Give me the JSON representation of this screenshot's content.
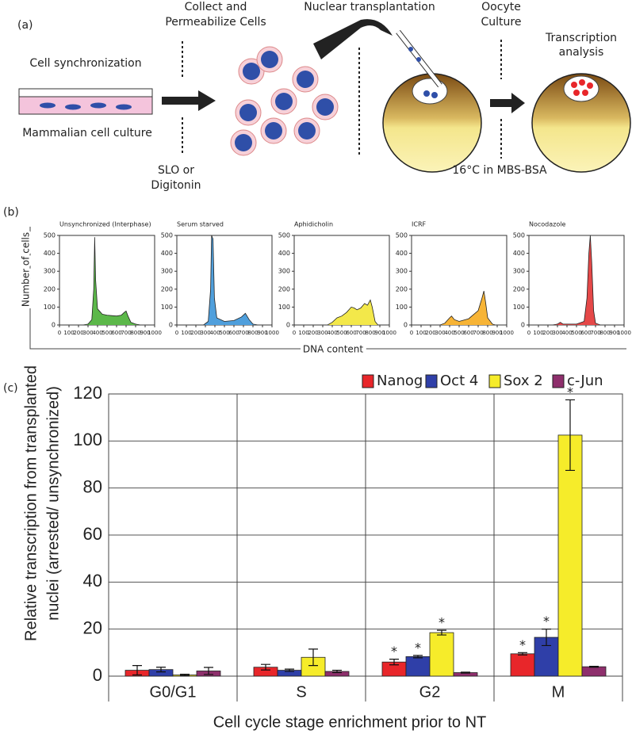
{
  "panel_labels": [
    "(a)",
    "(b)",
    "(c)"
  ],
  "diagram": {
    "cell_synchronization": "Cell synchronization",
    "mammalian_culture": "Mammalian cell culture",
    "collect": [
      "Collect and",
      "Permeabilize Cells"
    ],
    "reagent": [
      "SLO or",
      "Digitonin"
    ],
    "nuclear_transplantation": "Nuclear transplantation",
    "oocyte_culture": [
      "Oocyte",
      "Culture"
    ],
    "culture_condition": "16°C in MBS-BSA",
    "transcription_analysis": [
      "Transcription",
      "analysis"
    ]
  },
  "histogram_axes": {
    "y_label": "Number of cells",
    "x_label": "DNA content"
  },
  "chart_data": [
    {
      "type": "area",
      "title": "Unsynchronized (Interphase)",
      "color": "#5cb84a",
      "x": [
        250,
        300,
        340,
        360,
        370,
        380,
        400,
        450,
        500,
        550,
        600,
        650,
        680,
        700,
        720,
        750,
        800,
        850
      ],
      "values": [
        0,
        5,
        30,
        200,
        490,
        250,
        90,
        60,
        55,
        52,
        50,
        55,
        70,
        78,
        50,
        15,
        5,
        0
      ],
      "xlim": [
        0,
        1000
      ],
      "xticks": [
        0,
        100,
        200,
        300,
        400,
        500,
        600,
        700,
        800,
        900,
        1000
      ],
      "ylim": [
        0,
        500
      ],
      "yticks": [
        0,
        100,
        200,
        300,
        400,
        500
      ]
    },
    {
      "type": "area",
      "title": "Serum starved",
      "color": "#4f9fdc",
      "x": [
        280,
        330,
        355,
        365,
        380,
        395,
        420,
        500,
        600,
        680,
        720,
        760,
        800,
        850
      ],
      "values": [
        0,
        20,
        200,
        500,
        480,
        150,
        40,
        20,
        25,
        45,
        65,
        30,
        5,
        0
      ],
      "xlim": [
        0,
        1000
      ],
      "xticks": [
        0,
        100,
        200,
        300,
        400,
        500,
        600,
        700,
        800,
        900,
        1000
      ],
      "ylim": [
        0,
        500
      ],
      "yticks": [
        0,
        100,
        200,
        300,
        400,
        500
      ]
    },
    {
      "type": "area",
      "title": "Aphidicholin",
      "color": "#f3e84a",
      "x": [
        350,
        400,
        450,
        500,
        550,
        600,
        630,
        660,
        700,
        740,
        770,
        800,
        820,
        850,
        880
      ],
      "values": [
        0,
        15,
        40,
        50,
        70,
        100,
        95,
        85,
        95,
        120,
        110,
        140,
        100,
        20,
        0
      ],
      "xlim": [
        0,
        1000
      ],
      "xticks": [
        0,
        100,
        200,
        300,
        400,
        500,
        600,
        700,
        800,
        900,
        1000
      ],
      "ylim": [
        0,
        500
      ],
      "yticks": [
        0,
        100,
        200,
        300,
        400,
        500
      ]
    },
    {
      "type": "area",
      "title": "ICRF",
      "color": "#f7b436",
      "x": [
        300,
        350,
        400,
        420,
        450,
        500,
        600,
        700,
        740,
        760,
        780,
        800,
        850,
        880
      ],
      "values": [
        0,
        10,
        40,
        50,
        30,
        20,
        35,
        80,
        150,
        190,
        120,
        40,
        5,
        0
      ],
      "xlim": [
        0,
        1000
      ],
      "xticks": [
        0,
        100,
        200,
        300,
        400,
        500,
        600,
        700,
        800,
        900,
        1000
      ],
      "ylim": [
        0,
        500
      ],
      "yticks": [
        0,
        100,
        200,
        300,
        400,
        500
      ]
    },
    {
      "type": "area",
      "title": "Nocodazole",
      "color": "#e54848",
      "x": [
        250,
        300,
        330,
        360,
        500,
        580,
        610,
        630,
        645,
        660,
        680,
        700,
        750
      ],
      "values": [
        0,
        5,
        15,
        5,
        5,
        20,
        150,
        400,
        500,
        350,
        80,
        10,
        0
      ],
      "xlim": [
        0,
        1000
      ],
      "xticks": [
        0,
        100,
        200,
        300,
        400,
        500,
        600,
        700,
        800,
        900,
        1000
      ],
      "ylim": [
        0,
        500
      ],
      "yticks": [
        0,
        100,
        200,
        300,
        400,
        500
      ]
    },
    {
      "type": "bar",
      "y_label": [
        "Relative transcription from transplanted",
        "nuclei (arrested/ unsynchronized)"
      ],
      "x_label": "Cell cycle stage enrichment prior to NT",
      "categories": [
        "G0/G1",
        "S",
        "G2",
        "M"
      ],
      "series": [
        {
          "name": "Nanog",
          "color": "#e8262a",
          "values": [
            2.5,
            3.8,
            6,
            9.5
          ],
          "errors": [
            2,
            1.2,
            1.2,
            0.5
          ],
          "significance": [
            null,
            null,
            "*",
            "*"
          ]
        },
        {
          "name": "Oct 4",
          "color": "#2f3fa8",
          "values": [
            2.8,
            2.5,
            8.3,
            16.5
          ],
          "errors": [
            1,
            0.5,
            0.5,
            3.5
          ],
          "significance": [
            null,
            null,
            "*",
            "*"
          ]
        },
        {
          "name": "Sox 2",
          "color": "#f6ec2a",
          "values": [
            0.5,
            8,
            18.5,
            102.5
          ],
          "errors": [
            0.3,
            3.5,
            1,
            15
          ],
          "significance": [
            null,
            null,
            "*",
            "*"
          ]
        },
        {
          "name": "c-Jun",
          "color": "#8e2f6c",
          "values": [
            2.2,
            2,
            1.5,
            4
          ],
          "errors": [
            1.5,
            0.5,
            0.2,
            0.2
          ],
          "significance": [
            null,
            null,
            null,
            null
          ]
        }
      ],
      "ylim": [
        0,
        120
      ],
      "yticks": [
        0,
        20,
        40,
        60,
        80,
        100,
        120
      ],
      "grid": true,
      "legend": "top-right"
    }
  ]
}
